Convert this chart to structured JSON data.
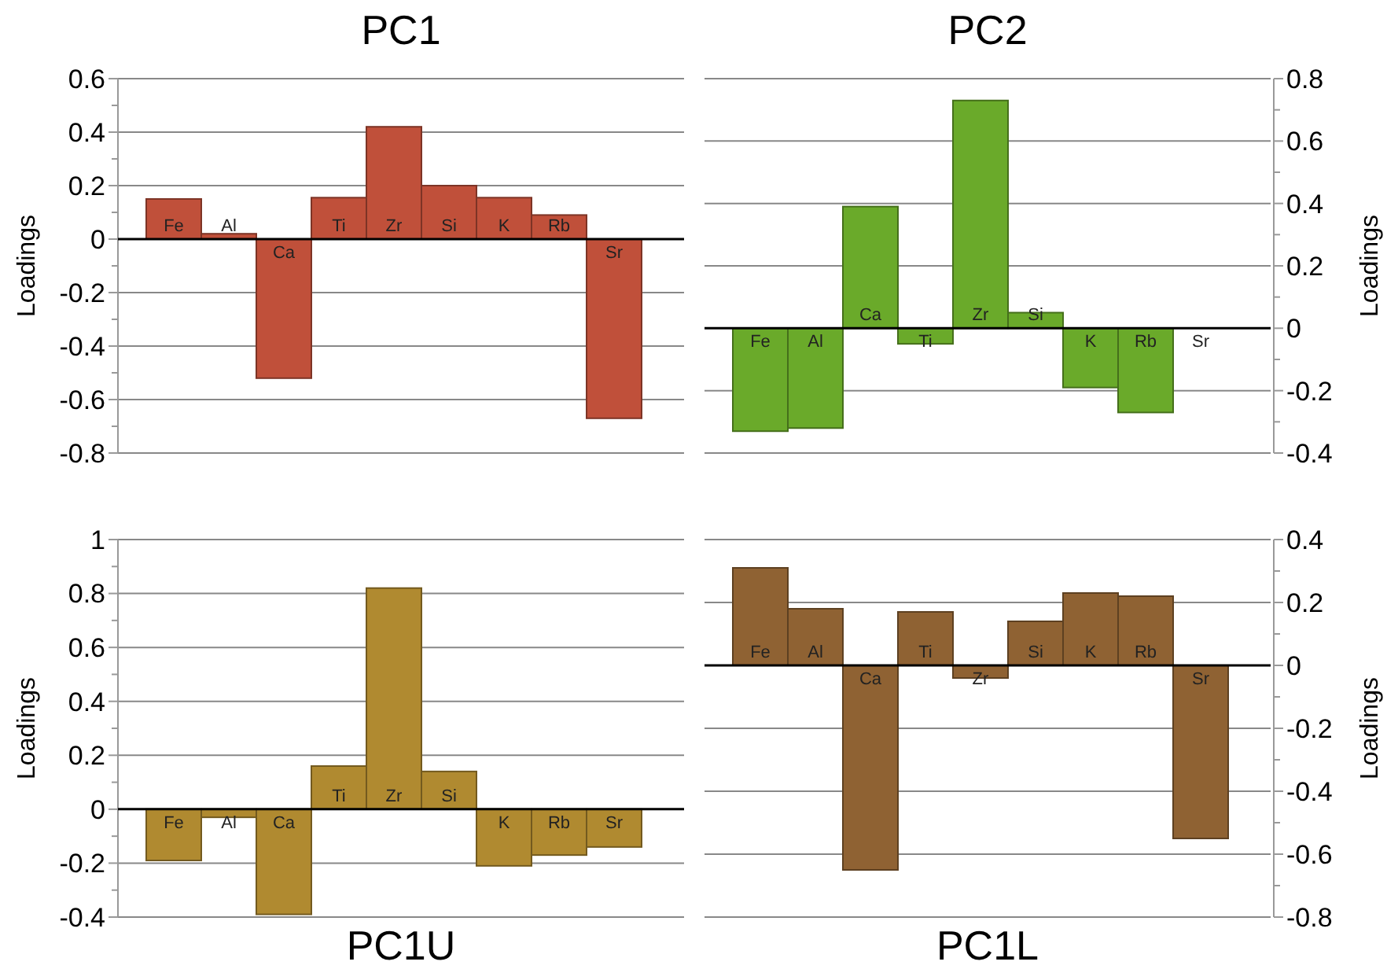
{
  "chart_data": [
    {
      "type": "bar",
      "title": "PC1",
      "ylabel": "Loadings",
      "categories": [
        "Fe",
        "Al",
        "Ca",
        "Ti",
        "Zr",
        "Si",
        "K",
        "Rb",
        "Sr"
      ],
      "series": [
        {
          "color": "#c0503a",
          "values": [
            0.15,
            0.02,
            -0.52,
            0.155,
            0.42,
            0.2,
            0.155,
            0.09,
            -0.67
          ]
        }
      ],
      "ylim": [
        -0.8,
        0.6
      ],
      "yticks": [
        -0.8,
        {
          "value": -0.7,
          "label": null
        },
        -0.6,
        {
          "value": -0.5,
          "label": null
        },
        -0.4,
        {
          "value": -0.3,
          "label": null
        },
        -0.2,
        {
          "value": -0.1,
          "label": null
        },
        0,
        {
          "value": 0.1,
          "label": null
        },
        0.2,
        {
          "value": 0.3,
          "label": null
        },
        0.4,
        {
          "value": 0.5,
          "label": null
        },
        0.6
      ],
      "grid": "y"
    },
    {
      "type": "bar",
      "title": "PC2",
      "ylabel": "Loadings",
      "categories": [
        "Fe",
        "Al",
        "Ca",
        "Ti",
        "Zr",
        "Si",
        "K",
        "Rb",
        "Sr"
      ],
      "series": [
        {
          "color": "#6aaa2a",
          "values": [
            -0.33,
            -0.32,
            0.39,
            -0.05,
            0.73,
            0.05,
            -0.19,
            -0.27,
            0
          ]
        }
      ],
      "ylim": [
        -0.4,
        0.8
      ],
      "yticks": [
        -0.4,
        {
          "value": -0.3,
          "label": null
        },
        -0.2,
        {
          "value": -0.1,
          "label": null
        },
        0,
        {
          "value": 0.1,
          "label": null
        },
        0.2,
        {
          "value": 0.3,
          "label": null
        },
        0.4,
        {
          "value": 0.5,
          "label": null
        },
        0.6,
        {
          "value": 0.7,
          "label": null
        },
        0.8
      ],
      "grid": "y"
    },
    {
      "type": "bar",
      "title": "PC1U",
      "ylabel": "Loadings",
      "categories": [
        "Fe",
        "Al",
        "Ca",
        "Ti",
        "Zr",
        "Si",
        "K",
        "Rb",
        "Sr"
      ],
      "series": [
        {
          "color": "#b08a30",
          "values": [
            -0.19,
            -0.03,
            -0.39,
            0.16,
            0.82,
            0.14,
            -0.21,
            -0.17,
            -0.14
          ]
        }
      ],
      "ylim": [
        -0.4,
        1
      ],
      "yticks": [
        -0.4,
        {
          "value": -0.3,
          "label": null
        },
        -0.2,
        {
          "value": -0.1,
          "label": null
        },
        0,
        {
          "value": 0.1,
          "label": null
        },
        0.2,
        {
          "value": 0.3,
          "label": null
        },
        0.4,
        {
          "value": 0.5,
          "label": null
        },
        0.6,
        {
          "value": 0.7,
          "label": null
        },
        0.8,
        {
          "value": 0.9,
          "label": null
        },
        1
      ],
      "grid": "y"
    },
    {
      "type": "bar",
      "title": "PC1L",
      "ylabel": "Loadings",
      "categories": [
        "Fe",
        "Al",
        "Ca",
        "Ti",
        "Zr",
        "Si",
        "K",
        "Rb",
        "Sr"
      ],
      "series": [
        {
          "color": "#8f6233",
          "values": [
            0.31,
            0.18,
            -0.65,
            0.17,
            -0.04,
            0.14,
            0.23,
            0.22,
            -0.55
          ]
        }
      ],
      "ylim": [
        -0.8,
        0.4
      ],
      "yticks": [
        -0.8,
        {
          "value": -0.7,
          "label": null
        },
        -0.6,
        {
          "value": -0.5,
          "label": null
        },
        -0.4,
        {
          "value": -0.3,
          "label": null
        },
        -0.2,
        {
          "value": -0.1,
          "label": null
        },
        0,
        {
          "value": 0.1,
          "label": null
        },
        0.2,
        {
          "value": 0.3,
          "label": null
        },
        0.4
      ],
      "grid": "y"
    }
  ]
}
